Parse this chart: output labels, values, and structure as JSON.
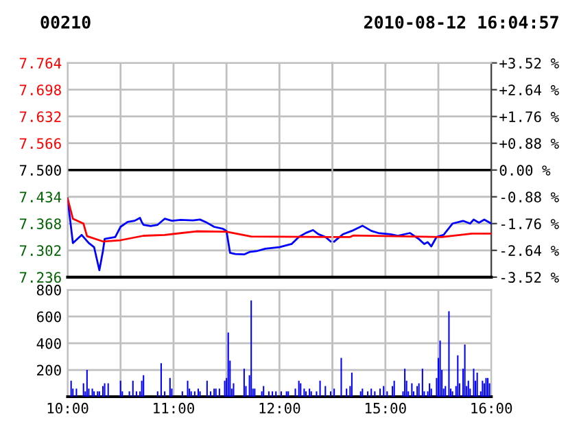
{
  "chart_data": [
    {
      "type": "line",
      "title": "00210",
      "tick_labels": "y",
      "grid": true,
      "xlim": [
        "2010-08-12T10:00",
        "2010-08-12T12:30"
      ],
      "xticks": [
        {
          "value": "2010-08-12T10:00",
          "label": null
        },
        {
          "value": "2010-08-12T10:30",
          "label": null
        },
        {
          "value": "2010-08-12T11:00",
          "label": null
        },
        {
          "value": "2010-08-12T11:30",
          "label": null
        },
        {
          "value": "2010-08-12T12:00",
          "label": null
        },
        {
          "value": "2010-08-12T12:30",
          "label": null
        }
      ],
      "ylim": [
        7.236,
        7.764
      ],
      "yticks": [
        {
          "value": 7.236,
          "label": "7.236"
        },
        {
          "value": 7.302,
          "label": "7.302"
        },
        {
          "value": 7.368,
          "label": "7.368"
        },
        {
          "value": 7.434,
          "label": "7.434"
        },
        {
          "value": 7.5,
          "label": "7.500"
        },
        {
          "value": 7.566,
          "label": "7.566"
        },
        {
          "value": 7.632,
          "label": "7.632"
        },
        {
          "value": 7.698,
          "label": "7.698"
        },
        {
          "value": 7.764,
          "label": "7.764"
        }
      ],
      "ref_lines": [
        {
          "axis": "y",
          "value": 7.5,
          "color": "#000000"
        }
      ],
      "series": [
        {
          "color": "#0000ff",
          "x": [
            "2010-08-12T10:00",
            "2010-08-12T10:03",
            "2010-08-12T10:08",
            "2010-08-12T10:12",
            "2010-08-12T10:15",
            "2010-08-12T10:18",
            "2010-08-12T10:20",
            "2010-08-12T10:21",
            "2010-08-12T10:27",
            "2010-08-12T10:30",
            "2010-08-12T10:34",
            "2010-08-12T10:38",
            "2010-08-12T10:41",
            "2010-08-12T10:42",
            "2010-08-12T10:43",
            "2010-08-12T10:47",
            "2010-08-12T10:51",
            "2010-08-12T10:55",
            "2010-08-12T10:59",
            "2010-08-12T11:04",
            "2010-08-12T11:11",
            "2010-08-12T11:15",
            "2010-08-12T11:19",
            "2010-08-12T11:23",
            "2010-08-12T11:28",
            "2010-08-12T11:30",
            "2010-08-12T11:32",
            "2010-08-12T11:35",
            "2010-08-12T11:40",
            "2010-08-12T11:43",
            "2010-08-12T11:47",
            "2010-08-12T11:52",
            "2010-08-12T12:00",
            "2010-08-12T12:07",
            "2010-08-12T12:11",
            "2010-08-12T12:15",
            "2010-08-12T12:19",
            "2010-08-12T12:22",
            "2010-08-12T12:26",
            "2010-08-12T12:29"
          ],
          "values": [
            7.43,
            7.32,
            7.34,
            7.32,
            7.31,
            7.253,
            7.3,
            7.33,
            7.335,
            7.36,
            7.372,
            7.375,
            7.382,
            7.372,
            7.365,
            7.362,
            7.365,
            7.38,
            7.375,
            7.377,
            7.376,
            7.378,
            7.37,
            7.36,
            7.355,
            7.35,
            7.296,
            7.293,
            7.292,
            7.298,
            7.3,
            7.306,
            7.31,
            7.318,
            7.335,
            7.345,
            7.352,
            7.342,
            7.335,
            7.324
          ]
        },
        {
          "color": "#ff0000",
          "x": [
            "2010-08-12T10:00",
            "2010-08-12T10:03",
            "2010-08-12T10:09",
            "2010-08-12T10:11",
            "2010-08-12T10:20",
            "2010-08-12T10:30",
            "2010-08-12T10:43",
            "2010-08-12T10:55",
            "2010-08-12T11:13",
            "2010-08-12T11:30",
            "2010-08-12T11:44",
            "2010-08-12T12:29"
          ],
          "values": [
            7.43,
            7.38,
            7.368,
            7.337,
            7.324,
            7.327,
            7.338,
            7.34,
            7.349,
            7.348,
            7.336,
            7.335
          ]
        }
      ]
    },
    {
      "type": "line",
      "title": "2010-08-12 16:04:57",
      "tick_labels": "y",
      "grid": true,
      "xlim": [
        "2010-08-12T14:30",
        "2010-08-12T16:00"
      ],
      "xticks": [
        {
          "value": "2010-08-12T14:30",
          "label": null
        },
        {
          "value": "2010-08-12T15:00",
          "label": null
        },
        {
          "value": "2010-08-12T15:30",
          "label": null
        },
        {
          "value": "2010-08-12T16:00",
          "label": null
        }
      ],
      "ylim": [
        -3.52,
        3.52
      ],
      "yticks": [
        {
          "value": -3.52,
          "label": "-3.52 %"
        },
        {
          "value": -2.64,
          "label": "-2.64 %"
        },
        {
          "value": -1.76,
          "label": "-1.76 %"
        },
        {
          "value": -0.88,
          "label": "-0.88 %"
        },
        {
          "value": 0,
          "label": "0.00 %"
        },
        {
          "value": 0.88,
          "label": "+0.88 %"
        },
        {
          "value": 1.76,
          "label": "+1.76 %"
        },
        {
          "value": 2.64,
          "label": "+2.64 %"
        },
        {
          "value": 3.52,
          "label": "+3.52 %"
        }
      ],
      "ref_lines": [
        {
          "axis": "y",
          "value": 0,
          "color": "#000000"
        }
      ],
      "series": [
        {
          "color": "#0000ff",
          "x": [
            "2010-08-12T14:31",
            "2010-08-12T14:36",
            "2010-08-12T14:41",
            "2010-08-12T14:47",
            "2010-08-12T14:52",
            "2010-08-12T14:56",
            "2010-08-12T15:03",
            "2010-08-12T15:07",
            "2010-08-12T15:14",
            "2010-08-12T15:19",
            "2010-08-12T15:22",
            "2010-08-12T15:24",
            "2010-08-12T15:26",
            "2010-08-12T15:29",
            "2010-08-12T15:33",
            "2010-08-12T15:38",
            "2010-08-12T15:44",
            "2010-08-12T15:48",
            "2010-08-12T15:50",
            "2010-08-12T15:53",
            "2010-08-12T15:56",
            "2010-08-12T16:00"
          ],
          "values": [
            -2.35,
            -2.11,
            -2.0,
            -1.83,
            -2.0,
            -2.07,
            -2.11,
            -2.16,
            -2.07,
            -2.27,
            -2.43,
            -2.37,
            -2.51,
            -2.2,
            -2.13,
            -1.76,
            -1.67,
            -1.76,
            -1.63,
            -1.73,
            -1.63,
            -1.76
          ]
        },
        {
          "color": "#ff0000",
          "x": [
            "2010-08-12T14:31",
            "2010-08-12T14:40",
            "2010-08-12T14:42",
            "2010-08-12T15:32",
            "2010-08-12T15:49",
            "2010-08-12T16:00"
          ],
          "values": [
            -2.2,
            -2.2,
            -2.15,
            -2.2,
            -2.09,
            -2.09
          ]
        }
      ]
    },
    {
      "type": "bar",
      "grid": true,
      "xlim": [
        "2010-08-12T10:00",
        "2010-08-12T12:30"
      ],
      "xticks": [
        {
          "value": "2010-08-12T10:00",
          "label": "10:00"
        },
        {
          "value": "2010-08-12T10:30",
          "label": null
        },
        {
          "value": "2010-08-12T11:00",
          "label": "11:00"
        },
        {
          "value": "2010-08-12T11:30",
          "label": null
        },
        {
          "value": "2010-08-12T12:00",
          "label": "12:00"
        },
        {
          "value": "2010-08-12T12:30",
          "label": null
        }
      ],
      "ylim": [
        0,
        800
      ],
      "yticks": [
        {
          "value": 0,
          "label": null
        },
        200,
        400,
        600,
        800
      ],
      "series": [
        {
          "color": "#0000ff",
          "x": [
            "2010-08-12T10:02",
            "2010-08-12T10:03",
            "2010-08-12T10:05",
            "2010-08-12T10:09",
            "2010-08-12T10:10",
            "2010-08-12T10:11",
            "2010-08-12T10:12",
            "2010-08-12T10:14",
            "2010-08-12T10:15",
            "2010-08-12T10:17",
            "2010-08-12T10:18",
            "2010-08-12T10:20",
            "2010-08-12T10:21",
            "2010-08-12T10:23",
            "2010-08-12T10:30",
            "2010-08-12T10:31",
            "2010-08-12T10:35",
            "2010-08-12T10:37",
            "2010-08-12T10:39",
            "2010-08-12T10:41",
            "2010-08-12T10:42",
            "2010-08-12T10:43",
            "2010-08-12T10:51",
            "2010-08-12T10:53",
            "2010-08-12T10:55",
            "2010-08-12T10:58",
            "2010-08-12T10:59",
            "2010-08-12T11:05",
            "2010-08-12T11:08",
            "2010-08-12T11:09",
            "2010-08-12T11:10",
            "2010-08-12T11:12",
            "2010-08-12T11:14",
            "2010-08-12T11:15",
            "2010-08-12T11:19",
            "2010-08-12T11:21",
            "2010-08-12T11:23",
            "2010-08-12T11:24",
            "2010-08-12T11:26",
            "2010-08-12T11:29",
            "2010-08-12T11:30",
            "2010-08-12T11:31",
            "2010-08-12T11:32",
            "2010-08-12T11:33",
            "2010-08-12T11:34",
            "2010-08-12T11:40",
            "2010-08-12T11:41",
            "2010-08-12T11:43",
            "2010-08-12T11:44",
            "2010-08-12T11:45",
            "2010-08-12T11:46",
            "2010-08-12T11:50",
            "2010-08-12T11:51",
            "2010-08-12T11:54",
            "2010-08-12T11:56",
            "2010-08-12T11:58",
            "2010-08-12T12:01",
            "2010-08-12T12:04",
            "2010-08-12T12:05",
            "2010-08-12T12:09",
            "2010-08-12T12:11",
            "2010-08-12T12:12",
            "2010-08-12T12:14",
            "2010-08-12T12:15",
            "2010-08-12T12:17",
            "2010-08-12T12:18",
            "2010-08-12T12:21",
            "2010-08-12T12:23",
            "2010-08-12T12:26",
            "2010-08-12T12:29"
          ],
          "values": [
            120,
            60,
            60,
            100,
            40,
            200,
            60,
            60,
            40,
            40,
            40,
            80,
            100,
            100,
            120,
            40,
            40,
            120,
            40,
            40,
            120,
            160,
            40,
            250,
            40,
            140,
            60,
            40,
            120,
            60,
            40,
            40,
            60,
            40,
            120,
            40,
            60,
            60,
            60,
            120,
            140,
            480,
            270,
            60,
            100,
            210,
            80,
            160,
            720,
            60,
            60,
            40,
            80,
            40,
            40,
            40,
            40,
            40,
            40,
            60,
            120,
            100,
            60,
            40,
            60,
            40,
            40,
            120,
            80,
            40
          ]
        }
      ]
    },
    {
      "type": "bar",
      "tick_labels": "x",
      "grid": true,
      "xlim": [
        "2010-08-12T14:30",
        "2010-08-12T16:00"
      ],
      "xticks": [
        {
          "value": "2010-08-12T14:30",
          "label": null
        },
        {
          "value": "2010-08-12T15:00",
          "label": "15:00"
        },
        {
          "value": "2010-08-12T15:30",
          "label": null
        },
        {
          "value": "2010-08-12T16:00",
          "label": "16:00"
        }
      ],
      "ylim": [
        0,
        800
      ],
      "yticks": [
        {
          "value": 0,
          "label": null
        },
        {
          "value": 200,
          "label": null
        },
        {
          "value": 400,
          "label": null
        },
        {
          "value": 600,
          "label": null
        },
        {
          "value": 800,
          "label": null
        }
      ],
      "series": [
        {
          "color": "#0000ff",
          "x": [
            "2010-08-12T14:31",
            "2010-08-12T14:35",
            "2010-08-12T14:38",
            "2010-08-12T14:40",
            "2010-08-12T14:41",
            "2010-08-12T14:46",
            "2010-08-12T14:47",
            "2010-08-12T14:50",
            "2010-08-12T14:52",
            "2010-08-12T14:54",
            "2010-08-12T14:57",
            "2010-08-12T14:59",
            "2010-08-12T15:01",
            "2010-08-12T15:04",
            "2010-08-12T15:05",
            "2010-08-12T15:10",
            "2010-08-12T15:11",
            "2010-08-12T15:12",
            "2010-08-12T15:13",
            "2010-08-12T15:15",
            "2010-08-12T15:16",
            "2010-08-12T15:18",
            "2010-08-12T15:19",
            "2010-08-12T15:21",
            "2010-08-12T15:22",
            "2010-08-12T15:24",
            "2010-08-12T15:25",
            "2010-08-12T15:26",
            "2010-08-12T15:29",
            "2010-08-12T15:30",
            "2010-08-12T15:31",
            "2010-08-12T15:32",
            "2010-08-12T15:33",
            "2010-08-12T15:34",
            "2010-08-12T15:36",
            "2010-08-12T15:37",
            "2010-08-12T15:38",
            "2010-08-12T15:40",
            "2010-08-12T15:41",
            "2010-08-12T15:42",
            "2010-08-12T15:44",
            "2010-08-12T15:45",
            "2010-08-12T15:46",
            "2010-08-12T15:47",
            "2010-08-12T15:48",
            "2010-08-12T15:50",
            "2010-08-12T15:51",
            "2010-08-12T15:52",
            "2010-08-12T15:54",
            "2010-08-12T15:55",
            "2010-08-12T15:56",
            "2010-08-12T15:57",
            "2010-08-12T15:58",
            "2010-08-12T15:59"
          ],
          "values": [
            60,
            290,
            60,
            80,
            180,
            40,
            60,
            40,
            60,
            40,
            60,
            80,
            40,
            80,
            120,
            40,
            210,
            120,
            40,
            100,
            40,
            80,
            100,
            210,
            40,
            40,
            100,
            60,
            140,
            290,
            420,
            200,
            60,
            80,
            640,
            60,
            40,
            80,
            310,
            100,
            210,
            390,
            80,
            120,
            60,
            210,
            120,
            180,
            40,
            120,
            100,
            140,
            140,
            100
          ]
        }
      ]
    }
  ]
}
